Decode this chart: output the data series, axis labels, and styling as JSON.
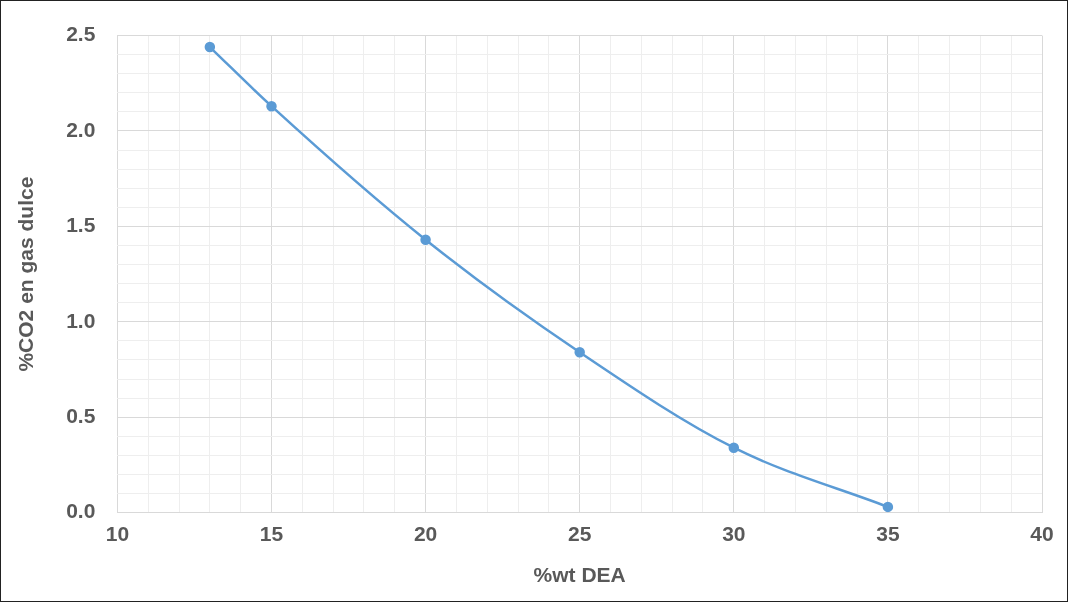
{
  "chart_data": {
    "type": "line",
    "xlabel": "%wt DEA",
    "ylabel": "%CO2 en gas dulce",
    "x": [
      13,
      15,
      20,
      25,
      30,
      35
    ],
    "series": [
      {
        "color": "#5b9bd5",
        "values": [
          2.44,
          2.13,
          1.43,
          0.84,
          0.34,
          0.03
        ]
      }
    ],
    "xlim": [
      10,
      40
    ],
    "xticks": [
      10,
      {
        "value": 11,
        "label": null
      },
      {
        "value": 12,
        "label": null
      },
      {
        "value": 13,
        "label": null
      },
      {
        "value": 14,
        "label": null
      },
      15,
      {
        "value": 16,
        "label": null
      },
      {
        "value": 17,
        "label": null
      },
      {
        "value": 18,
        "label": null
      },
      {
        "value": 19,
        "label": null
      },
      20,
      {
        "value": 21,
        "label": null
      },
      {
        "value": 22,
        "label": null
      },
      {
        "value": 23,
        "label": null
      },
      {
        "value": 24,
        "label": null
      },
      25,
      {
        "value": 26,
        "label": null
      },
      {
        "value": 27,
        "label": null
      },
      {
        "value": 28,
        "label": null
      },
      {
        "value": 29,
        "label": null
      },
      30,
      {
        "value": 31,
        "label": null
      },
      {
        "value": 32,
        "label": null
      },
      {
        "value": 33,
        "label": null
      },
      {
        "value": 34,
        "label": null
      },
      35,
      {
        "value": 36,
        "label": null
      },
      {
        "value": 37,
        "label": null
      },
      {
        "value": 38,
        "label": null
      },
      {
        "value": 39,
        "label": null
      },
      40
    ],
    "ylim": [
      0,
      2.5
    ],
    "yticks": [
      {
        "value": 0,
        "label": "0.0"
      },
      {
        "value": 0.1,
        "label": null
      },
      {
        "value": 0.2,
        "label": null
      },
      {
        "value": 0.3,
        "label": null
      },
      {
        "value": 0.4,
        "label": null
      },
      {
        "value": 0.5,
        "label": "0.5"
      },
      {
        "value": 0.6,
        "label": null
      },
      {
        "value": 0.7,
        "label": null
      },
      {
        "value": 0.8,
        "label": null
      },
      {
        "value": 0.9,
        "label": null
      },
      {
        "value": 1,
        "label": "1.0"
      },
      {
        "value": 1.1,
        "label": null
      },
      {
        "value": 1.2,
        "label": null
      },
      {
        "value": 1.3,
        "label": null
      },
      {
        "value": 1.4,
        "label": null
      },
      {
        "value": 1.5,
        "label": "1.5"
      },
      {
        "value": 1.6,
        "label": null
      },
      {
        "value": 1.7,
        "label": null
      },
      {
        "value": 1.8,
        "label": null
      },
      {
        "value": 1.9,
        "label": null
      },
      {
        "value": 2,
        "label": "2.0"
      },
      {
        "value": 2.1,
        "label": null
      },
      {
        "value": 2.2,
        "label": null
      },
      {
        "value": 2.3,
        "label": null
      },
      {
        "value": 2.4,
        "label": null
      },
      {
        "value": 2.5,
        "label": "2.5"
      }
    ],
    "grid": true,
    "legend": false,
    "marker": "circle",
    "line_style": "solid"
  }
}
